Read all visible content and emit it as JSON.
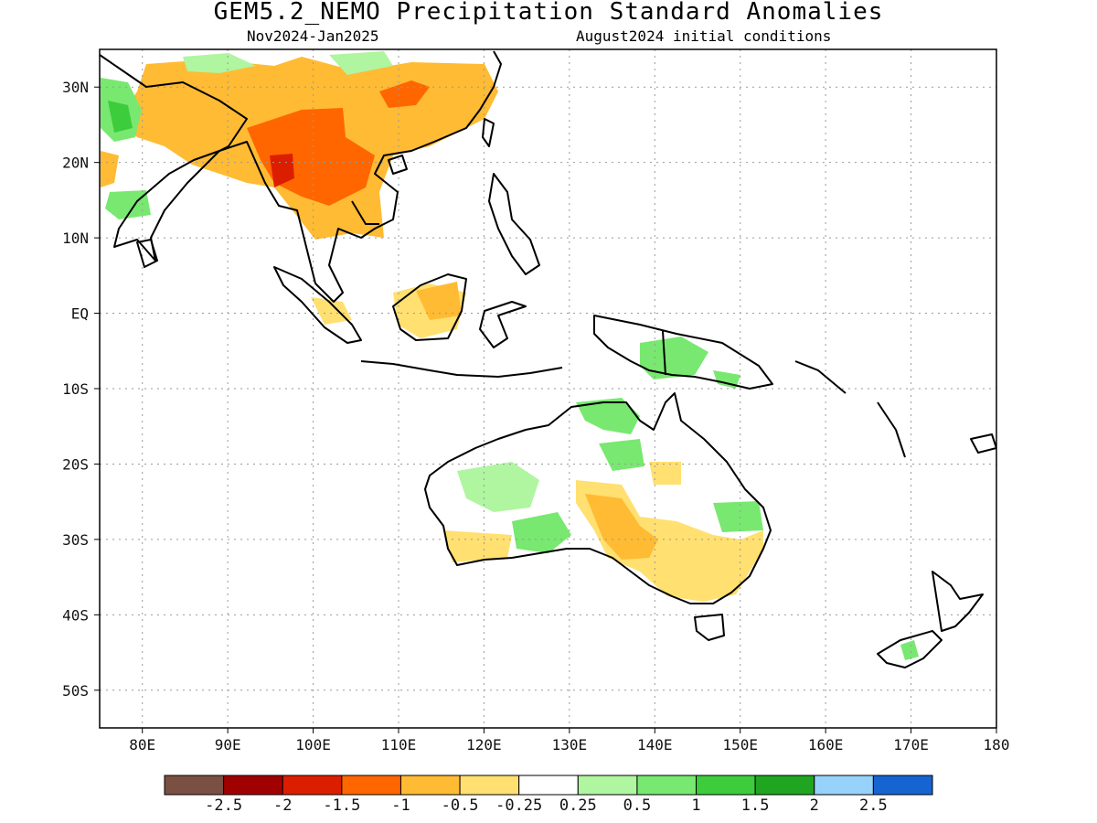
{
  "title": "GEM5.2_NEMO Precipitation Standard Anomalies",
  "period": "Nov2024-Jan2025",
  "init": "August2024 initial conditions",
  "lat_labels": [
    "30N",
    "20N",
    "10N",
    "EQ",
    "10S",
    "20S",
    "30S",
    "40S",
    "50S"
  ],
  "lat_values": [
    30,
    20,
    10,
    0,
    -10,
    -20,
    -30,
    -40,
    -50
  ],
  "lon_labels": [
    "80E",
    "90E",
    "100E",
    "110E",
    "120E",
    "130E",
    "140E",
    "150E",
    "160E",
    "170E",
    "180"
  ],
  "lon_values": [
    80,
    90,
    100,
    110,
    120,
    130,
    140,
    150,
    160,
    170,
    180
  ],
  "extent": {
    "lon_min": 75,
    "lon_max": 180,
    "lat_min": -55,
    "lat_max": 35
  },
  "colorbar": {
    "colors": [
      "#7a5043",
      "#a00000",
      "#dc1e00",
      "#ff6600",
      "#ffbb33",
      "#ffe070",
      "#ffffff",
      "#b0f5a0",
      "#78e870",
      "#3ccc3c",
      "#1fa51f",
      "#96d2fa",
      "#1664d2"
    ],
    "labels": [
      "-2.5",
      "-2",
      "-1.5",
      "-1",
      "-0.5",
      "-0.25",
      "0.25",
      "0.5",
      "1",
      "1.5",
      "2",
      "2.5"
    ]
  }
}
